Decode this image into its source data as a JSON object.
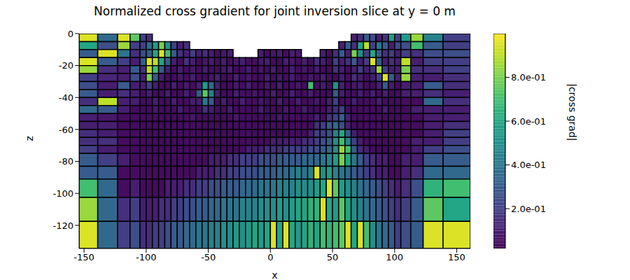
{
  "chart_data": {
    "type": "heatmap",
    "title": "Normalized cross gradient for joint inversion slice at y = 0 m",
    "x_label": "x",
    "y_label": "z",
    "xlim": [
      -154,
      161
    ],
    "ylim": [
      -134.5,
      0
    ],
    "xticks": [
      -150,
      -100,
      -50,
      0,
      50,
      100,
      150
    ],
    "yticks": [
      -120,
      -100,
      -80,
      -60,
      -40,
      -20,
      0
    ],
    "x_edges": [
      -154,
      -139,
      -123,
      -113,
      -105,
      -100,
      -95,
      -90,
      -85,
      -80,
      -75,
      -70,
      -65,
      -60,
      -55,
      -50,
      -45,
      -40,
      -35,
      -30,
      -25,
      -20,
      -15,
      -10,
      -5,
      0,
      5,
      10,
      15,
      20,
      25,
      30,
      35,
      40,
      45,
      50,
      55,
      60,
      65,
      70,
      75,
      80,
      85,
      90,
      95,
      100,
      105,
      113,
      123,
      139,
      161
    ],
    "z_edges": [
      0,
      -5,
      -10,
      -15,
      -20,
      -25,
      -30,
      -35,
      -40,
      -45,
      -50,
      -55,
      -60,
      -65,
      -70,
      -75,
      -83,
      -91,
      -102.5,
      -117.5,
      -134.5
    ],
    "cells": [
      [
        0.95,
        0.35,
        0.95,
        0.75,
        0.2,
        0.15,
        null,
        null,
        null,
        null,
        null,
        null,
        null,
        null,
        null,
        null,
        null,
        null,
        null,
        null,
        null,
        null,
        null,
        null,
        null,
        null,
        null,
        null,
        null,
        null,
        null,
        null,
        null,
        null,
        null,
        null,
        null,
        null,
        0.1,
        0.15,
        0.3,
        0.25,
        0.1,
        0.15,
        0.55,
        0.2,
        0.55,
        0.85,
        0.45,
        0.2
      ],
      [
        0.6,
        0.25,
        0.85,
        0.2,
        0.2,
        0.35,
        0.55,
        0.8,
        0.5,
        0.2,
        0.1,
        0.15,
        null,
        null,
        null,
        null,
        null,
        null,
        null,
        null,
        null,
        null,
        null,
        null,
        null,
        null,
        null,
        null,
        null,
        null,
        null,
        null,
        null,
        null,
        null,
        null,
        0.1,
        0.3,
        0.15,
        0.6,
        0.9,
        0.2,
        0.4,
        0.3,
        0.1,
        0.25,
        0.25,
        0.7,
        0.3,
        0.2
      ],
      [
        0.3,
        0.95,
        0.4,
        0.15,
        0.25,
        0.3,
        0.6,
        0.95,
        0.7,
        0.3,
        0.15,
        0.1,
        0.2,
        0.1,
        0.15,
        0.1,
        0.05,
        0.08,
        0.1,
        null,
        null,
        null,
        null,
        0.1,
        0.05,
        0.08,
        0.1,
        0.05,
        0.1,
        0.08,
        null,
        null,
        null,
        0.1,
        0.05,
        0.15,
        0.3,
        0.1,
        0.8,
        0.5,
        0.2,
        0.6,
        0.3,
        0.15,
        0.2,
        0.1,
        0.2,
        0.15,
        0.25,
        0.25
      ],
      [
        0.95,
        0.3,
        0.2,
        0.1,
        0.3,
        0.95,
        0.9,
        0.6,
        0.3,
        0.1,
        0.05,
        0.15,
        0.1,
        0.05,
        0.08,
        0.1,
        0.05,
        0.1,
        0.05,
        0.08,
        0.1,
        0.05,
        0.05,
        0.08,
        0.1,
        0.05,
        0.05,
        0.1,
        0.08,
        0.05,
        0.1,
        0.05,
        0.15,
        0.1,
        0.05,
        0.2,
        0.1,
        0.15,
        0.3,
        0.1,
        0.2,
        0.95,
        0.3,
        0.1,
        0.15,
        0.1,
        0.9,
        0.1,
        0.2,
        0.2
      ],
      [
        0.85,
        0.15,
        0.1,
        0.3,
        0.15,
        0.9,
        0.7,
        0.3,
        0.1,
        0.05,
        0.1,
        0.05,
        0.08,
        0.05,
        0.1,
        0.05,
        0.05,
        0.08,
        0.1,
        0.05,
        0.05,
        0.1,
        0.05,
        0.08,
        0.05,
        0.1,
        0.05,
        0.05,
        0.1,
        0.05,
        0.08,
        0.05,
        0.1,
        0.05,
        0.05,
        0.15,
        0.1,
        0.05,
        0.1,
        0.2,
        0.1,
        0.15,
        0.85,
        0.2,
        0.1,
        0.1,
        0.8,
        0.15,
        0.15,
        0.2
      ],
      [
        0.2,
        0.12,
        0.1,
        0.25,
        0.1,
        0.8,
        0.3,
        0.1,
        0.05,
        0.05,
        0.08,
        0.05,
        0.1,
        0.05,
        0.05,
        0.08,
        0.1,
        0.05,
        0.05,
        0.1,
        0.05,
        0.08,
        0.05,
        0.05,
        0.1,
        0.05,
        0.08,
        0.05,
        0.1,
        0.05,
        0.05,
        0.08,
        0.05,
        0.1,
        0.05,
        0.05,
        0.1,
        0.05,
        0.15,
        0.1,
        0.05,
        0.1,
        0.2,
        0.95,
        0.3,
        0.1,
        0.85,
        0.1,
        0.1,
        0.15
      ],
      [
        0.25,
        0.1,
        0.3,
        0.1,
        0.1,
        0.2,
        0.1,
        0.05,
        0.05,
        0.1,
        0.05,
        0.08,
        0.05,
        0.1,
        0.55,
        0.35,
        0.1,
        0.05,
        0.05,
        0.08,
        0.05,
        0.1,
        0.05,
        0.05,
        0.08,
        0.05,
        0.1,
        0.05,
        0.05,
        0.08,
        0.05,
        0.7,
        0.05,
        0.1,
        0.05,
        0.5,
        0.1,
        0.05,
        0.08,
        0.1,
        0.05,
        0.05,
        0.1,
        0.3,
        0.1,
        0.05,
        0.1,
        0.1,
        0.3,
        0.15
      ],
      [
        0.3,
        0.1,
        0.15,
        0.1,
        0.05,
        0.1,
        0.05,
        0.05,
        0.1,
        0.05,
        0.05,
        0.1,
        0.05,
        0.3,
        0.75,
        0.45,
        0.1,
        0.05,
        0.05,
        0.1,
        0.05,
        0.05,
        0.08,
        0.05,
        0.05,
        0.1,
        0.05,
        0.05,
        0.1,
        0.05,
        0.05,
        0.1,
        0.05,
        0.05,
        0.05,
        0.3,
        0.1,
        0.05,
        0.05,
        0.1,
        0.05,
        0.1,
        0.05,
        0.1,
        0.05,
        0.05,
        0.1,
        0.1,
        0.15,
        0.1
      ],
      [
        0.15,
        0.9,
        0.1,
        0.1,
        0.05,
        0.05,
        0.1,
        0.05,
        0.05,
        0.1,
        0.05,
        0.05,
        0.1,
        0.1,
        0.4,
        0.3,
        0.05,
        0.1,
        0.05,
        0.05,
        0.1,
        0.05,
        0.05,
        0.08,
        0.05,
        0.05,
        0.1,
        0.05,
        0.05,
        0.1,
        0.05,
        0.05,
        0.08,
        0.05,
        0.1,
        0.2,
        0.05,
        0.05,
        0.1,
        0.05,
        0.05,
        0.05,
        0.1,
        0.05,
        0.05,
        0.05,
        0.05,
        0.05,
        0.35,
        0.15
      ],
      [
        0.35,
        0.3,
        0.1,
        0.05,
        0.05,
        0.05,
        0.08,
        0.05,
        0.05,
        0.05,
        0.1,
        0.05,
        0.05,
        0.05,
        0.15,
        0.1,
        0.05,
        0.05,
        0.1,
        0.05,
        0.05,
        0.05,
        0.05,
        0.1,
        0.05,
        0.05,
        0.05,
        0.08,
        0.05,
        0.05,
        0.1,
        0.05,
        0.05,
        0.05,
        0.1,
        0.15,
        0.2,
        0.05,
        0.05,
        0.05,
        0.05,
        0.05,
        0.05,
        0.1,
        0.05,
        0.05,
        0.05,
        0.1,
        0.1,
        0.1
      ],
      [
        0.1,
        0.08,
        0.05,
        0.05,
        0.05,
        0.05,
        0.05,
        0.05,
        0.05,
        0.05,
        0.05,
        0.05,
        0.08,
        0.05,
        0.05,
        0.05,
        0.05,
        0.05,
        0.05,
        0.08,
        0.05,
        0.05,
        0.05,
        0.05,
        0.05,
        0.05,
        0.08,
        0.05,
        0.05,
        0.05,
        0.05,
        0.05,
        0.1,
        0.05,
        0.15,
        0.2,
        0.3,
        0.1,
        0.05,
        0.05,
        0.05,
        0.05,
        0.05,
        0.05,
        0.05,
        0.05,
        0.05,
        0.05,
        0.1,
        0.1
      ],
      [
        0.1,
        0.1,
        0.05,
        0.05,
        0.05,
        0.05,
        0.05,
        0.05,
        0.05,
        0.05,
        0.05,
        0.05,
        0.05,
        0.05,
        0.05,
        0.05,
        0.05,
        0.05,
        0.05,
        0.05,
        0.05,
        0.05,
        0.05,
        0.05,
        0.05,
        0.05,
        0.05,
        0.05,
        0.05,
        0.05,
        0.05,
        0.05,
        0.15,
        0.2,
        0.3,
        0.35,
        0.25,
        0.1,
        0.05,
        0.05,
        0.05,
        0.05,
        0.05,
        0.05,
        0.05,
        0.05,
        0.05,
        0.05,
        0.1,
        0.15
      ],
      [
        0.15,
        0.1,
        0.05,
        0.05,
        0.05,
        0.05,
        0.05,
        0.05,
        0.05,
        0.05,
        0.05,
        0.05,
        0.05,
        0.05,
        0.05,
        0.05,
        0.05,
        0.05,
        0.05,
        0.05,
        0.05,
        0.05,
        0.05,
        0.05,
        0.05,
        0.05,
        0.05,
        0.05,
        0.05,
        0.05,
        0.05,
        0.1,
        0.2,
        0.2,
        0.25,
        0.45,
        0.6,
        0.3,
        0.1,
        0.05,
        0.05,
        0.05,
        0.05,
        0.05,
        0.05,
        0.05,
        0.05,
        0.05,
        0.1,
        0.2
      ],
      [
        0.15,
        0.15,
        0.05,
        0.05,
        0.05,
        0.05,
        0.05,
        0.05,
        0.05,
        0.05,
        0.05,
        0.05,
        0.05,
        0.05,
        0.05,
        0.05,
        0.05,
        0.05,
        0.05,
        0.05,
        0.05,
        0.05,
        0.05,
        0.05,
        0.05,
        0.1,
        0.1,
        0.1,
        0.1,
        0.1,
        0.15,
        0.15,
        0.2,
        0.25,
        0.3,
        0.5,
        0.7,
        0.45,
        0.2,
        0.1,
        0.05,
        0.05,
        0.05,
        0.05,
        0.05,
        0.05,
        0.05,
        0.1,
        0.1,
        0.2
      ],
      [
        0.2,
        0.1,
        0.05,
        0.05,
        0.05,
        0.05,
        0.05,
        0.05,
        0.05,
        0.05,
        0.05,
        0.05,
        0.05,
        0.05,
        0.05,
        0.05,
        0.05,
        0.05,
        0.05,
        0.05,
        0.05,
        0.1,
        0.1,
        0.1,
        0.15,
        0.15,
        0.15,
        0.2,
        0.2,
        0.2,
        0.2,
        0.25,
        0.25,
        0.3,
        0.35,
        0.5,
        0.85,
        0.7,
        0.3,
        0.15,
        0.1,
        0.05,
        0.05,
        0.05,
        0.05,
        0.05,
        0.05,
        0.1,
        0.2,
        0.25
      ],
      [
        0.3,
        0.2,
        0.1,
        0.05,
        0.05,
        0.05,
        0.05,
        0.05,
        0.05,
        0.05,
        0.05,
        0.05,
        0.05,
        0.05,
        0.05,
        0.1,
        0.1,
        0.1,
        0.15,
        0.15,
        0.2,
        0.2,
        0.2,
        0.25,
        0.25,
        0.25,
        0.3,
        0.3,
        0.3,
        0.3,
        0.35,
        0.35,
        0.35,
        0.4,
        0.45,
        0.55,
        0.8,
        0.6,
        0.4,
        0.3,
        0.2,
        0.15,
        0.1,
        0.1,
        0.05,
        0.05,
        0.1,
        0.1,
        0.3,
        0.3
      ],
      [
        0.3,
        0.3,
        0.05,
        0.05,
        0.05,
        0.05,
        0.05,
        0.05,
        0.05,
        0.05,
        0.05,
        0.05,
        0.05,
        0.1,
        0.1,
        0.1,
        0.15,
        0.15,
        0.2,
        0.2,
        0.25,
        0.25,
        0.25,
        0.3,
        0.3,
        0.3,
        0.35,
        0.35,
        0.4,
        0.45,
        0.4,
        0.45,
        0.95,
        0.5,
        0.55,
        0.45,
        0.4,
        0.35,
        0.3,
        0.25,
        0.2,
        0.15,
        0.1,
        0.1,
        0.05,
        0.05,
        0.1,
        0.15,
        0.35,
        0.35
      ],
      [
        0.7,
        0.35,
        0.05,
        0.1,
        0.05,
        0.05,
        0.05,
        0.05,
        0.1,
        0.1,
        0.1,
        0.15,
        0.15,
        0.2,
        0.2,
        0.25,
        0.25,
        0.3,
        0.3,
        0.3,
        0.35,
        0.35,
        0.35,
        0.4,
        0.4,
        0.4,
        0.45,
        0.45,
        0.45,
        0.5,
        0.5,
        0.5,
        0.55,
        0.6,
        0.95,
        0.75,
        0.55,
        0.5,
        0.45,
        0.4,
        0.35,
        0.3,
        0.25,
        0.2,
        0.15,
        0.1,
        0.15,
        0.25,
        0.65,
        0.7
      ],
      [
        0.85,
        0.35,
        0.15,
        0.2,
        0.1,
        0.1,
        0.1,
        0.15,
        0.15,
        0.2,
        0.2,
        0.25,
        0.25,
        0.3,
        0.3,
        0.35,
        0.35,
        0.4,
        0.4,
        0.4,
        0.45,
        0.45,
        0.45,
        0.5,
        0.5,
        0.5,
        0.55,
        0.5,
        0.55,
        0.6,
        0.6,
        0.65,
        0.65,
        0.95,
        0.6,
        0.55,
        0.75,
        0.6,
        0.5,
        0.45,
        0.4,
        0.35,
        0.3,
        0.25,
        0.2,
        0.15,
        0.2,
        0.3,
        0.75,
        0.6
      ],
      [
        0.95,
        0.35,
        0.2,
        0.25,
        0.15,
        0.15,
        0.2,
        0.2,
        0.25,
        0.3,
        0.3,
        0.35,
        0.35,
        0.4,
        0.4,
        0.45,
        0.45,
        0.5,
        0.5,
        0.55,
        0.5,
        0.55,
        0.6,
        0.55,
        0.6,
        0.95,
        0.6,
        0.95,
        0.6,
        0.55,
        0.6,
        0.65,
        0.6,
        0.7,
        0.65,
        0.7,
        0.75,
        0.95,
        0.6,
        0.95,
        0.7,
        0.5,
        0.4,
        0.35,
        0.3,
        0.2,
        0.25,
        0.3,
        0.95,
        0.95
      ]
    ],
    "colorbar": {
      "label": "|cross grad|",
      "lim": [
        0.018,
        1.0
      ],
      "ticks": [
        {
          "value": 0.2,
          "label": "2.0e-01"
        },
        {
          "value": 0.4,
          "label": "4.0e-01"
        },
        {
          "value": 0.6,
          "label": "6.0e-01"
        },
        {
          "value": 0.8,
          "label": "8.0e-01"
        }
      ]
    }
  }
}
